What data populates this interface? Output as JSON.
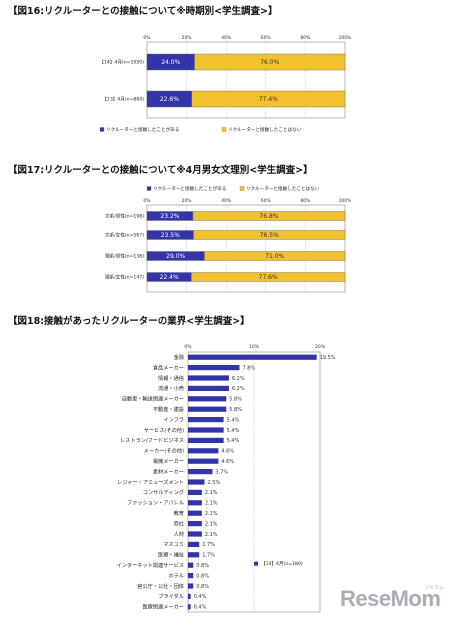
{
  "colors": {
    "blue": "#3333aa",
    "yellow": "#f2c12e",
    "grid": "#b8b8b8"
  },
  "chart_data": [
    {
      "type": "bar",
      "orientation": "horizontal-stacked-100",
      "title": "【図16:リクルーターとの接触について※時期別<学生調査>】",
      "x_ticks": [
        "0%",
        "20%",
        "40%",
        "60%",
        "80%",
        "100%"
      ],
      "xlim": [
        0,
        100
      ],
      "categories": [
        "【14】4月(n=1050)",
        "【13】4月(n=864)"
      ],
      "series": [
        {
          "name": "リクルーターと接触したことがある",
          "values": [
            24.0,
            22.6
          ],
          "labels": [
            "24.0%",
            "22.6%"
          ]
        },
        {
          "name": "リクルーターと接触したことはない",
          "values": [
            76.0,
            77.4
          ],
          "labels": [
            "76.0%",
            "77.4%"
          ]
        }
      ],
      "legend": "bottom"
    },
    {
      "type": "bar",
      "orientation": "horizontal-stacked-100",
      "title": "【図17:リクルーターとの接触について※4月男女文理別<学生調査>】",
      "x_ticks": [
        "0%",
        "20%",
        "40%",
        "60%",
        "80%",
        "100%"
      ],
      "xlim": [
        0,
        100
      ],
      "categories": [
        "文系/男性(n=198)",
        "文系/女性(n=567)",
        "理系/男性(n=138)",
        "理系/女性(n=147)"
      ],
      "series": [
        {
          "name": "リクルーターと接触したことがある",
          "values": [
            23.2,
            23.5,
            29.0,
            22.4
          ],
          "labels": [
            "23.2%",
            "23.5%",
            "29.0%",
            "22.4%"
          ]
        },
        {
          "name": "リクルーターと接触したことはない",
          "values": [
            76.8,
            76.5,
            71.0,
            77.6
          ],
          "labels": [
            "76.8%",
            "76.5%",
            "71.0%",
            "77.6%"
          ]
        }
      ],
      "legend": "top"
    },
    {
      "type": "bar",
      "orientation": "horizontal",
      "title": "【図18:接触があったリクルーターの業界<学生調査>】",
      "x_ticks": [
        "0%",
        "10%",
        "20%"
      ],
      "xlim": [
        0,
        20
      ],
      "categories": [
        "金融",
        "食品メーカー",
        "情報・通信",
        "流通・小売",
        "自動車・輸送関連メーカー",
        "不動産・建設",
        "インフラ",
        "サービス(その他)",
        "レストラン/フードビジネス",
        "メーカー(その他)",
        "電機メーカー",
        "素材メーカー",
        "レジャー・アミューズメント",
        "コンサルティング",
        "ファッション・アパレル",
        "教育",
        "商社",
        "人材",
        "マスコミ",
        "医療・福祉",
        "インターネット関連サービス",
        "ホテル",
        "官公庁・公社・団体",
        "ブライダル",
        "医療関連メーカー"
      ],
      "series": [
        {
          "name": "【14】4月(n=180)",
          "values": [
            19.5,
            7.8,
            6.2,
            6.2,
            5.8,
            5.8,
            5.4,
            5.4,
            5.4,
            4.6,
            4.6,
            3.7,
            2.5,
            2.1,
            2.1,
            2.1,
            2.1,
            2.1,
            1.7,
            1.7,
            0.8,
            0.8,
            0.8,
            0.4,
            0.4
          ],
          "labels": [
            "19.5%",
            "7.8%",
            "6.2%",
            "6.2%",
            "5.8%",
            "5.8%",
            "5.4%",
            "5.4%",
            "5.4%",
            "4.6%",
            "4.6%",
            "3.7%",
            "2.5%",
            "2.1%",
            "2.1%",
            "2.1%",
            "2.1%",
            "2.1%",
            "1.7%",
            "1.7%",
            "0.8%",
            "0.8%",
            "0.8%",
            "0.4%",
            "0.4%"
          ]
        }
      ],
      "legend": "inside-right"
    }
  ],
  "logo": {
    "text": "ReseMom",
    "sub": "リセマム"
  }
}
